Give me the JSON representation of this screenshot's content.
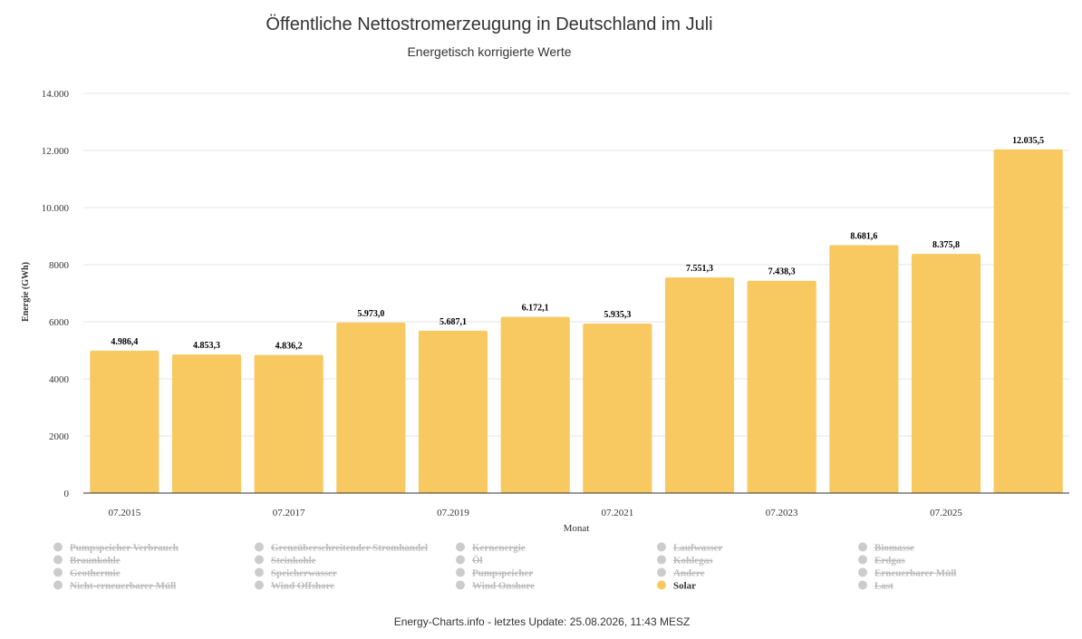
{
  "chart_data": {
    "type": "bar",
    "title": "Öffentliche Nettostromerzeugung in Deutschland im Juli",
    "subtitle": "Energetisch korrigierte Werte",
    "xlabel": "Monat",
    "ylabel": "Energie (GWh)",
    "ylim": [
      0,
      14000
    ],
    "yticks": [
      0,
      2000,
      4000,
      6000,
      8000,
      10000,
      12000,
      14000
    ],
    "ytick_labels": [
      "0",
      "2000",
      "4000",
      "6000",
      "8000",
      "10.000",
      "12.000",
      "14.000"
    ],
    "categories": [
      "07.2015",
      "07.2016",
      "07.2017",
      "07.2018",
      "07.2019",
      "07.2020",
      "07.2021",
      "07.2022",
      "07.2023",
      "07.2024",
      "07.2025",
      "07.2026"
    ],
    "xtick_labels_shown": [
      "07.2015",
      "07.2017",
      "07.2019",
      "07.2021",
      "07.2023",
      "07.2025"
    ],
    "series": [
      {
        "name": "Solar",
        "color": "#f8c960",
        "values": [
          4986.4,
          4853.3,
          4836.2,
          5973.0,
          5687.1,
          6172.1,
          5935.3,
          7551.3,
          7438.3,
          8681.6,
          8375.8,
          12035.5
        ],
        "data_labels": [
          "4.986,4",
          "4.853,3",
          "4.836,2",
          "5.973,0",
          "5.687,1",
          "6.172,1",
          "5.935,3",
          "7.551,3",
          "7.438,3",
          "8.681,6",
          "8.375,8",
          "12.035,5"
        ]
      }
    ],
    "grid": true
  },
  "legend": {
    "items": [
      {
        "label": "Pumpspeicher Verbrauch",
        "active": false,
        "color": "#cccccc"
      },
      {
        "label": "Grenzüberschreitender Stromhandel",
        "active": false,
        "color": "#cccccc"
      },
      {
        "label": "Kernenergie",
        "active": false,
        "color": "#cccccc"
      },
      {
        "label": "Laufwasser",
        "active": false,
        "color": "#cccccc"
      },
      {
        "label": "Biomasse",
        "active": false,
        "color": "#cccccc"
      },
      {
        "label": "Braunkohle",
        "active": false,
        "color": "#cccccc"
      },
      {
        "label": "Steinkohle",
        "active": false,
        "color": "#cccccc"
      },
      {
        "label": "Öl",
        "active": false,
        "color": "#cccccc"
      },
      {
        "label": "Kohlegas",
        "active": false,
        "color": "#cccccc"
      },
      {
        "label": "Erdgas",
        "active": false,
        "color": "#cccccc"
      },
      {
        "label": "Geothermie",
        "active": false,
        "color": "#cccccc"
      },
      {
        "label": "Speicherwasser",
        "active": false,
        "color": "#cccccc"
      },
      {
        "label": "Pumpspeicher",
        "active": false,
        "color": "#cccccc"
      },
      {
        "label": "Andere",
        "active": false,
        "color": "#cccccc"
      },
      {
        "label": "Erneuerbarer Müll",
        "active": false,
        "color": "#cccccc"
      },
      {
        "label": "Nicht-erneuerbarer Müll",
        "active": false,
        "color": "#cccccc"
      },
      {
        "label": "Wind Offshore",
        "active": false,
        "color": "#cccccc"
      },
      {
        "label": "Wind Onshore",
        "active": false,
        "color": "#cccccc"
      },
      {
        "label": "Solar",
        "active": true,
        "color": "#f8c960"
      },
      {
        "label": "Last",
        "active": false,
        "color": "#cccccc"
      }
    ]
  },
  "footer": {
    "text": "Energy-Charts.info - letztes Update: 25.08.2026, 11:43 MESZ"
  }
}
